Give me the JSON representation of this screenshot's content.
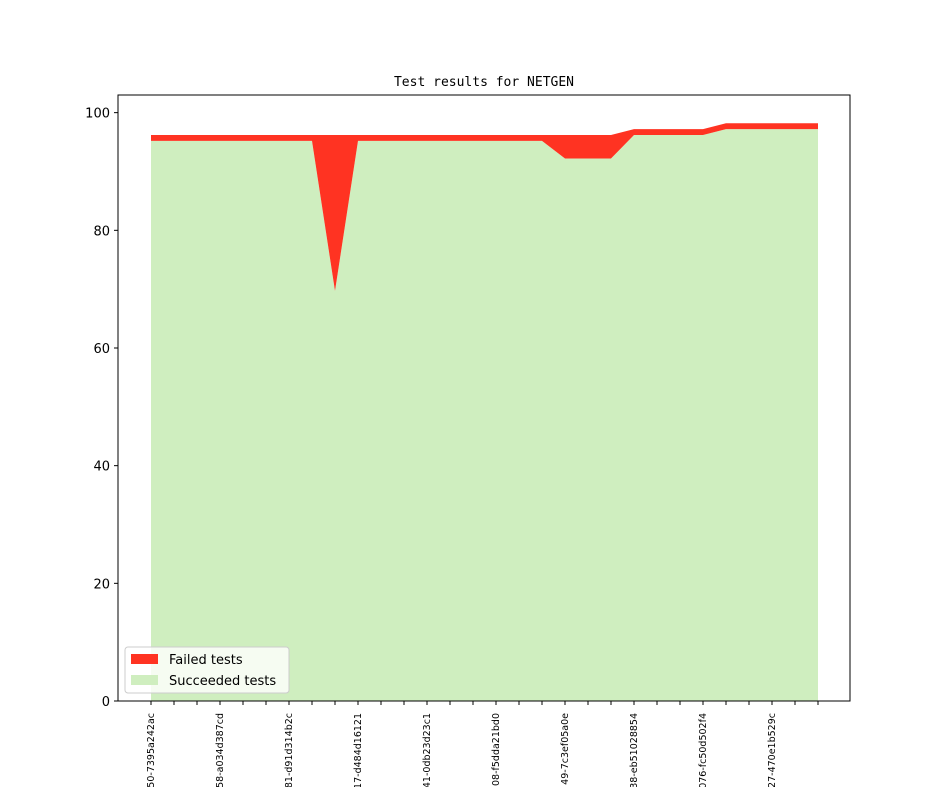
{
  "chart_data": {
    "type": "area",
    "title": "Test results for NETGEN",
    "xlabel": "",
    "ylabel": "",
    "ylim": [
      0,
      103
    ],
    "yticks": [
      0,
      20,
      40,
      60,
      80,
      100
    ],
    "yticklabels": [
      "0",
      "20",
      "40",
      "60",
      "80",
      "100"
    ],
    "categories": [
      "50-7395a242ac",
      "",
      "",
      "58-a034d387cd",
      "",
      "",
      "81-d91d314b2c",
      "",
      "",
      "17-d484d16121",
      "",
      "",
      "41-0db23d23c1",
      "",
      "",
      "08-f5dda21bd0",
      "",
      "",
      "49-7c3ef05a0e",
      "",
      "",
      "38-eb51028854",
      "",
      "",
      "076-fc50d502f4",
      "",
      "",
      "27-470e1b529c",
      "",
      ""
    ],
    "series": [
      {
        "name": "Failed tests",
        "color": "#ff3322",
        "values": [
          1,
          1,
          1,
          1,
          1,
          1,
          1,
          1,
          26.5,
          1,
          1,
          1,
          1,
          1,
          1,
          1,
          1,
          1,
          4,
          4,
          4,
          1,
          1,
          1,
          1,
          1,
          1,
          1,
          1,
          1
        ]
      },
      {
        "name": "Succeeded tests",
        "color": "#cfeebf",
        "values": [
          95.2,
          95.2,
          95.2,
          95.2,
          95.2,
          95.2,
          95.2,
          95.2,
          69.7,
          95.2,
          95.2,
          95.2,
          95.2,
          95.2,
          95.2,
          95.2,
          95.2,
          95.2,
          92.2,
          92.2,
          92.2,
          96.2,
          96.2,
          96.2,
          96.2,
          97.2,
          97.2,
          97.2,
          97.2,
          97.2
        ]
      }
    ],
    "legend": {
      "position": "lower-left",
      "entries": [
        "Failed tests",
        "Succeeded tests"
      ]
    },
    "grid": false
  }
}
